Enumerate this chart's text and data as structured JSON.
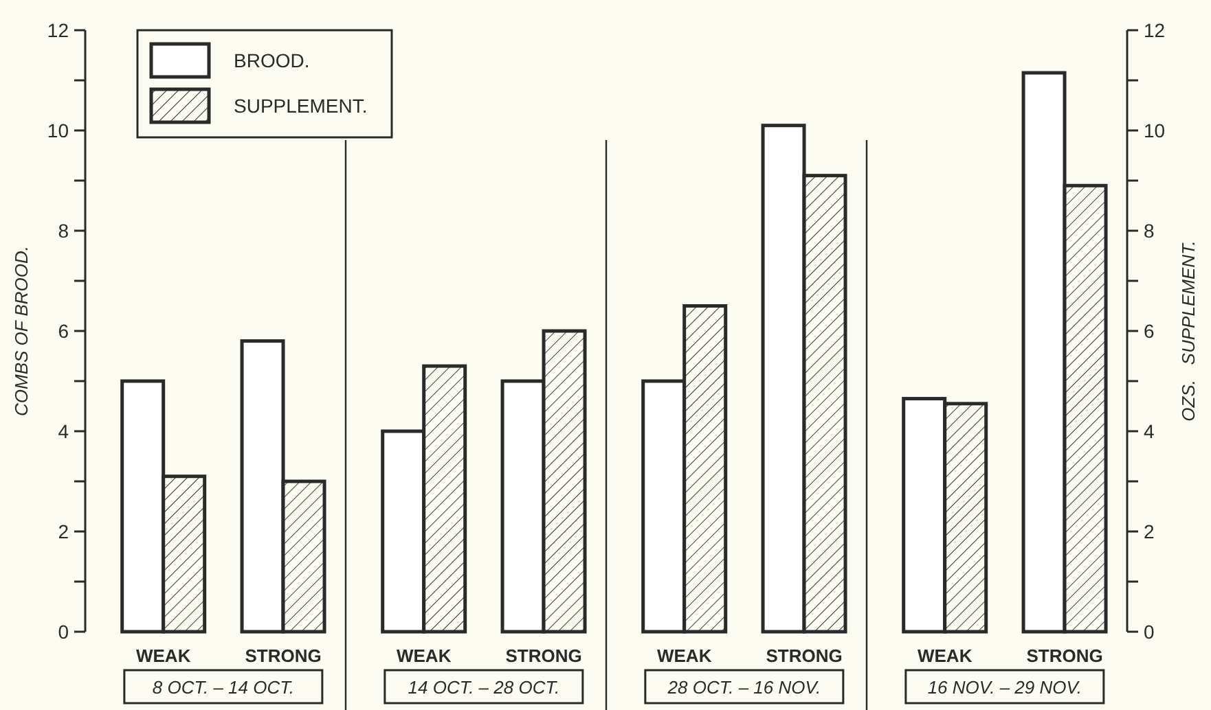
{
  "chart_data": {
    "type": "bar",
    "categories": [
      "WEAK",
      "STRONG",
      "WEAK",
      "STRONG",
      "WEAK",
      "STRONG",
      "WEAK",
      "STRONG"
    ],
    "series": [
      {
        "name": "BROOD.",
        "color": "#ffffff",
        "values": [
          5,
          5.8,
          4,
          5,
          5,
          10.1,
          4.65,
          11.15
        ]
      },
      {
        "name": "SUPPLEMENT.",
        "color": "#3a3a3a",
        "axis": "y2",
        "values": [
          3.1,
          3,
          5.3,
          6,
          6.5,
          9.1,
          4.55,
          8.9
        ]
      }
    ],
    "ylabel": "COMBS OF BROOD.",
    "y2label": "OZS.   SUPPLEMENT.",
    "ylim": [
      0,
      12
    ],
    "yticks": [
      0,
      {
        "value": 1,
        "label": null
      },
      2,
      {
        "value": 3,
        "label": null
      },
      4,
      {
        "value": 5,
        "label": null
      },
      6,
      {
        "value": 7,
        "label": null
      },
      8,
      {
        "value": 9,
        "label": null
      },
      10,
      {
        "value": 11,
        "label": null
      },
      12
    ],
    "y2lim": [
      0,
      12
    ],
    "y2ticks": [
      0,
      {
        "value": 1,
        "label": null
      },
      2,
      {
        "value": 3,
        "label": null
      },
      4,
      {
        "value": 5,
        "label": null
      },
      6,
      {
        "value": 7,
        "label": null
      },
      8,
      {
        "value": 9,
        "label": null
      },
      10,
      {
        "value": 11,
        "label": null
      },
      12
    ],
    "annotations": [
      "8 OCT. – 14 OCT.",
      "14 OCT. – 28 OCT.",
      "28 OCT. – 16 NOV.",
      "16 NOV. – 29 NOV."
    ],
    "legend": "top left",
    "grid": false
  }
}
